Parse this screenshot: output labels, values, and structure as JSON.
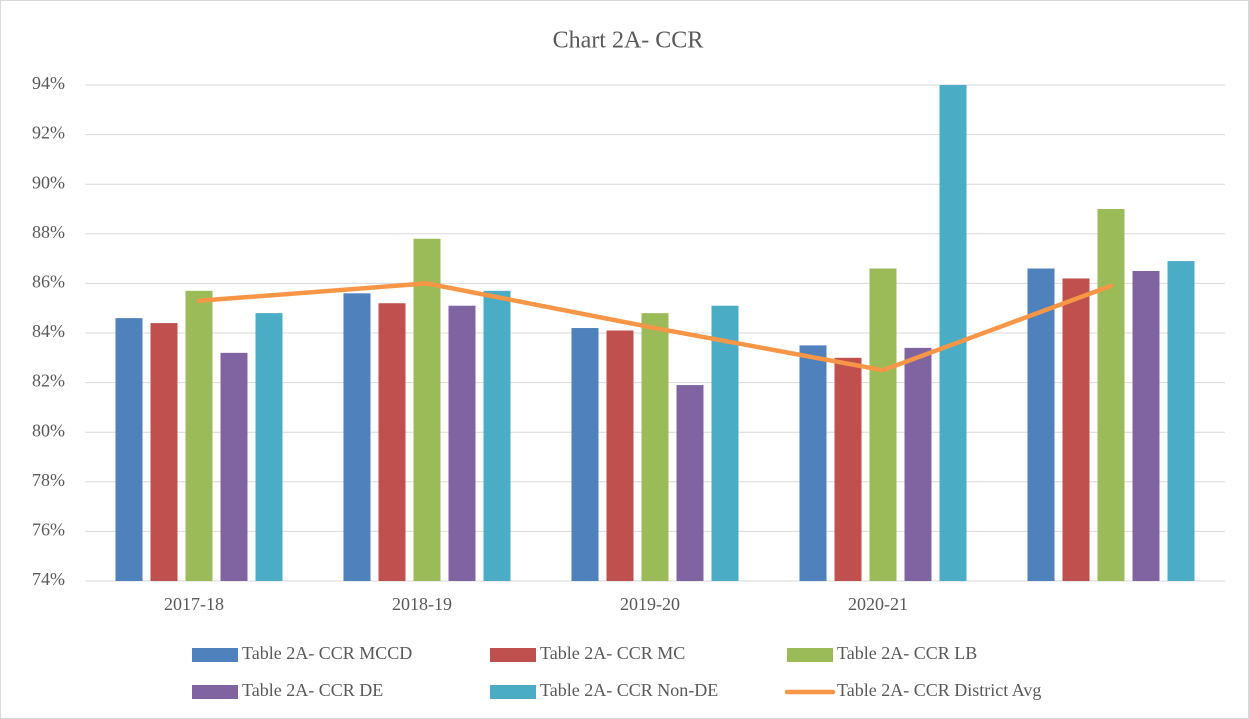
{
  "chart_data": {
    "type": "bar",
    "title": "Chart 2A- CCR",
    "categories": [
      "2017-18",
      "2018-19",
      "2019-20",
      "2020-21",
      null
    ],
    "series": [
      {
        "name": "Table 2A- CCR MCCD",
        "color": "#4f81bd",
        "values": [
          84.6,
          85.6,
          84.2,
          83.5,
          86.6
        ]
      },
      {
        "name": "Table 2A- CCR MC",
        "color": "#c0504d",
        "values": [
          84.4,
          85.2,
          84.1,
          83.0,
          86.2
        ]
      },
      {
        "name": "Table 2A- CCR LB",
        "color": "#9bbb59",
        "values": [
          85.7,
          87.8,
          84.8,
          86.6,
          89.0
        ]
      },
      {
        "name": "Table 2A- CCR DE",
        "color": "#8064a2",
        "values": [
          83.2,
          85.1,
          81.9,
          83.4,
          86.5
        ]
      },
      {
        "name": "Table 2A- CCR Non-DE",
        "color": "#4bacc6",
        "values": [
          84.8,
          85.7,
          85.1,
          94.0,
          86.9
        ]
      },
      {
        "name": "Table 2A- CCR District Avg",
        "color": "#f79646",
        "type": "line",
        "values": [
          85.3,
          86.0,
          84.2,
          82.5,
          85.9
        ]
      }
    ],
    "ylim": [
      74,
      94
    ],
    "yticks": [
      {
        "value": 74,
        "label": "74%"
      },
      {
        "value": 76,
        "label": "76%"
      },
      {
        "value": 78,
        "label": "78%"
      },
      {
        "value": 80,
        "label": "80%"
      },
      {
        "value": 82,
        "label": "82%"
      },
      {
        "value": 84,
        "label": "84%"
      },
      {
        "value": 86,
        "label": "86%"
      },
      {
        "value": 88,
        "label": "88%"
      },
      {
        "value": 90,
        "label": "90%"
      },
      {
        "value": 92,
        "label": "92%"
      },
      {
        "value": 94,
        "label": "94%"
      }
    ],
    "grid": true,
    "legend": "bottom"
  }
}
